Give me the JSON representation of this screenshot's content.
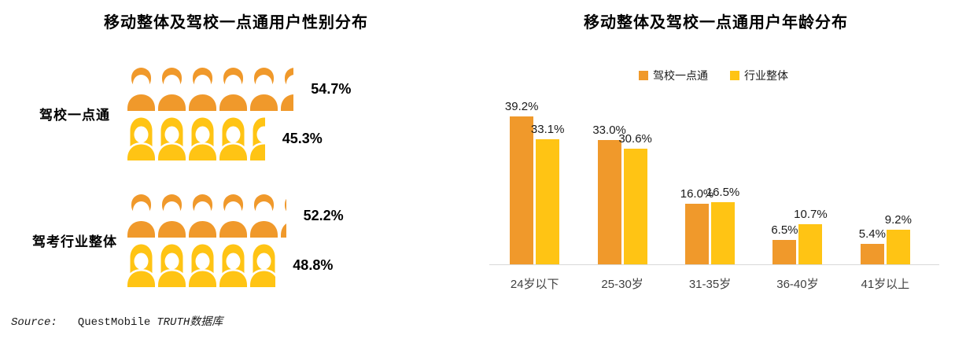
{
  "source": {
    "prefix": "Source:",
    "vendor": "QuestMobile",
    "dataset": "TRUTH数据库"
  },
  "colors": {
    "orange": "#F0992B",
    "yellow": "#FFC414",
    "axis_line": "#D9D9D9",
    "category_text": "#404040",
    "title_text": "#000000"
  },
  "chart_data": [
    {
      "type": "bar",
      "subtype": "pictogram",
      "title": "移动整体及驾校一点通用户性别分布",
      "categories": [
        "驾校一点通",
        "驾考行业整体"
      ],
      "series": [
        {
          "name": "male",
          "icon": "male-person-icon",
          "color": "#F0992B",
          "values": [
            54.7,
            52.2
          ]
        },
        {
          "name": "female",
          "icon": "female-person-icon",
          "color": "#FFC414",
          "values": [
            45.3,
            48.8
          ]
        }
      ],
      "unit": "%",
      "icon_unit_percent": 10,
      "data_labels": [
        "54.7%",
        "45.3%",
        "52.2%",
        "48.8%"
      ],
      "legend_position": "none",
      "grid": false
    },
    {
      "type": "bar",
      "title": "移动整体及驾校一点通用户年龄分布",
      "categories": [
        "24岁以下",
        "25-30岁",
        "31-35岁",
        "36-40岁",
        "41岁以上"
      ],
      "series": [
        {
          "name": "驾校一点通",
          "color": "#F0992B",
          "values": [
            39.2,
            33.0,
            16.0,
            6.5,
            5.4
          ]
        },
        {
          "name": "行业整体",
          "color": "#FFC414",
          "values": [
            33.1,
            30.6,
            16.5,
            10.7,
            9.2
          ]
        }
      ],
      "unit": "%",
      "ylim": [
        0,
        43
      ],
      "grid": false,
      "legend_position": "top",
      "data_labels": true,
      "xlabel": "",
      "ylabel": ""
    }
  ]
}
